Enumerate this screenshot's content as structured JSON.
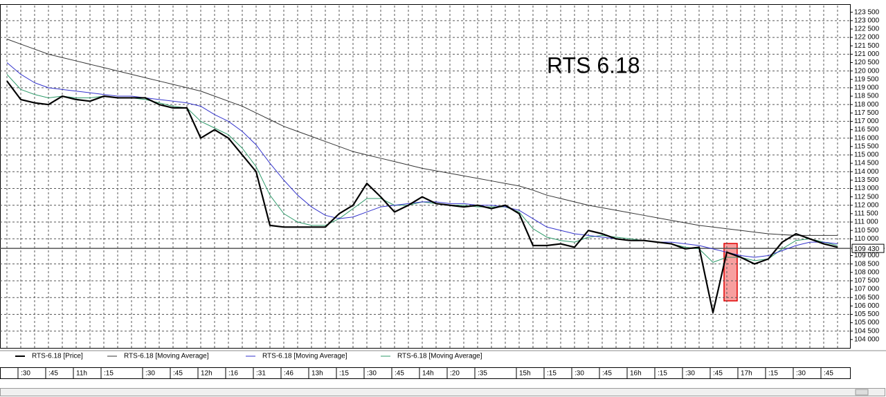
{
  "chart_data": {
    "type": "line",
    "title": "RTS 6.18",
    "categories": [
      null,
      ":30",
      null,
      ":45",
      null,
      "11h",
      null,
      ":15",
      null,
      null,
      ":30",
      null,
      ":45",
      null,
      "12h",
      null,
      ":16",
      null,
      ":31",
      null,
      ":46",
      null,
      "13h",
      null,
      ":15",
      null,
      ":30",
      null,
      ":45",
      null,
      "14h",
      null,
      ":20",
      null,
      ":35",
      null,
      null,
      "15h",
      null,
      ":15",
      null,
      ":30",
      null,
      ":45",
      null,
      "16h",
      null,
      ":15",
      null,
      ":30",
      null,
      ":45",
      null,
      "17h",
      null,
      ":15",
      null,
      ":30",
      null,
      ":45",
      null
    ],
    "series": [
      {
        "name": "RTS-6.18 [Price]",
        "color": "#000000",
        "values": [
          119400,
          118300,
          118100,
          118000,
          118500,
          118300,
          118200,
          118500,
          118400,
          118400,
          118400,
          118000,
          117800,
          117800,
          116000,
          116500,
          116000,
          115000,
          114000,
          110800,
          110700,
          110700,
          110700,
          110700,
          111500,
          112000,
          113300,
          112500,
          111600,
          112000,
          112500,
          112100,
          112000,
          111900,
          112000,
          111800,
          112000,
          111500,
          109600,
          109600,
          109700,
          109500,
          110500,
          110300,
          110000,
          109900,
          109900,
          109800,
          109700,
          109400,
          109500,
          105600,
          109200,
          108900,
          108500,
          108800,
          109800,
          110300,
          110000,
          109700,
          109500
        ]
      },
      {
        "name": "RTS-6.18 [Moving Average]",
        "color": "#333333",
        "values": [
          121900,
          121600,
          121300,
          121000,
          120800,
          120600,
          120400,
          120200,
          120000,
          119800,
          119600,
          119400,
          119200,
          119000,
          118800,
          118500,
          118200,
          117900,
          117500,
          117100,
          116700,
          116400,
          116100,
          115800,
          115500,
          115200,
          115000,
          114800,
          114600,
          114400,
          114200,
          114050,
          113900,
          113750,
          113600,
          113450,
          113300,
          113150,
          112900,
          112600,
          112400,
          112200,
          112000,
          111850,
          111700,
          111550,
          111400,
          111250,
          111100,
          110950,
          110800,
          110700,
          110600,
          110500,
          110400,
          110300,
          110250,
          110200,
          110200,
          110200,
          110200
        ]
      },
      {
        "name": "RTS-6.18 [Moving Average]",
        "color": "#3333cc",
        "values": [
          120500,
          119800,
          119300,
          119000,
          118900,
          118800,
          118700,
          118600,
          118500,
          118500,
          118400,
          118300,
          118200,
          118100,
          117900,
          117400,
          117000,
          116400,
          115600,
          114500,
          113500,
          112600,
          111900,
          111400,
          111200,
          111300,
          111600,
          111900,
          112000,
          112100,
          112200,
          112200,
          112100,
          112100,
          112000,
          112000,
          111900,
          111700,
          111200,
          110700,
          110500,
          110300,
          110200,
          110100,
          110000,
          109900,
          109900,
          109800,
          109800,
          109700,
          109600,
          109400,
          109200,
          109000,
          108900,
          109000,
          109300,
          109600,
          109800,
          109800,
          109700
        ]
      },
      {
        "name": "RTS-6.18 [Moving Average]",
        "color": "#2e9a6a",
        "values": [
          119800,
          118900,
          118600,
          118400,
          118500,
          118400,
          118400,
          118500,
          118400,
          118400,
          118300,
          118100,
          117900,
          117800,
          117000,
          116600,
          116200,
          115400,
          114300,
          112600,
          111500,
          111000,
          110800,
          110800,
          111200,
          111800,
          112400,
          112400,
          112000,
          112000,
          112200,
          112100,
          112000,
          112000,
          111900,
          111900,
          111900,
          111600,
          110600,
          110100,
          109900,
          109800,
          110100,
          110200,
          110100,
          110000,
          109900,
          109800,
          109700,
          109500,
          109400,
          108600,
          108900,
          108900,
          108700,
          108800,
          109400,
          109900,
          110000,
          109800,
          109600
        ]
      }
    ],
    "ylim": [
      103500,
      123900
    ],
    "yticks": [
      {
        "value": 123500,
        "label": "123 500"
      },
      {
        "value": 123000,
        "label": "123 000"
      },
      {
        "value": 122500,
        "label": "122 500"
      },
      {
        "value": 122000,
        "label": "122 000"
      },
      {
        "value": 121500,
        "label": "121 500"
      },
      {
        "value": 121000,
        "label": "121 000"
      },
      {
        "value": 120500,
        "label": "120 500"
      },
      {
        "value": 120000,
        "label": "120 000"
      },
      {
        "value": 119500,
        "label": "119 500"
      },
      {
        "value": 119000,
        "label": "119 000"
      },
      {
        "value": 118500,
        "label": "118 500"
      },
      {
        "value": 118000,
        "label": "118 000"
      },
      {
        "value": 117500,
        "label": "117 500"
      },
      {
        "value": 117000,
        "label": "117 000"
      },
      {
        "value": 116500,
        "label": "116 500"
      },
      {
        "value": 116000,
        "label": "116 000"
      },
      {
        "value": 115500,
        "label": "115 500"
      },
      {
        "value": 115000,
        "label": "115 000"
      },
      {
        "value": 114500,
        "label": "114 500"
      },
      {
        "value": 114000,
        "label": "114 000"
      },
      {
        "value": 113500,
        "label": "113 500"
      },
      {
        "value": 113000,
        "label": "113 000"
      },
      {
        "value": 112500,
        "label": "112 500"
      },
      {
        "value": 112000,
        "label": "112 000"
      },
      {
        "value": 111500,
        "label": "111 500"
      },
      {
        "value": 111000,
        "label": "111 000"
      },
      {
        "value": 110500,
        "label": "110 500"
      },
      {
        "value": 110000,
        "label": "110 000"
      },
      {
        "value": 109000,
        "label": "109 000"
      },
      {
        "value": 108500,
        "label": "108 500"
      },
      {
        "value": 108000,
        "label": "108 000"
      },
      {
        "value": 107500,
        "label": "107 500"
      },
      {
        "value": 107000,
        "label": "107 000"
      },
      {
        "value": 106500,
        "label": "106 500"
      },
      {
        "value": 106000,
        "label": "106 000"
      },
      {
        "value": 105500,
        "label": "105 500"
      },
      {
        "value": 105000,
        "label": "105 000"
      },
      {
        "value": 104500,
        "label": "104 500"
      },
      {
        "value": 104000,
        "label": "104 000"
      }
    ],
    "last_price": {
      "value": 109430,
      "label": "109 430"
    },
    "grid": true
  }
}
